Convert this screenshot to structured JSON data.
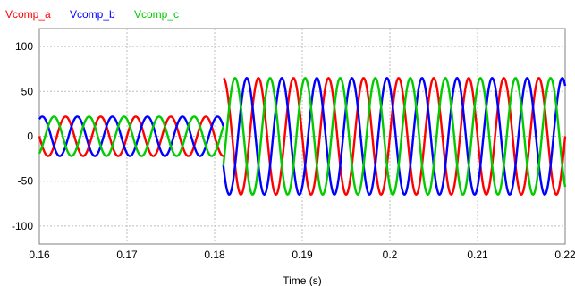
{
  "chart_data": {
    "type": "line",
    "title": "",
    "xlabel": "Time (s)",
    "ylabel": "",
    "xlim": [
      0.16,
      0.22
    ],
    "ylim": [
      -120,
      120
    ],
    "x_ticks": [
      0.16,
      0.17,
      0.18,
      0.19,
      0.2,
      0.21,
      0.22
    ],
    "x_tick_labels": [
      "0.16",
      "0.17",
      "0.18",
      "0.19",
      "0.2",
      "0.21",
      "0.22"
    ],
    "y_ticks": [
      -100,
      -50,
      0,
      50,
      100
    ],
    "y_tick_labels": [
      "-100",
      "-50",
      "0",
      "50",
      "100"
    ],
    "grid": true,
    "legend_position": "top-left",
    "series": [
      {
        "name": "Vcomp_a",
        "color": "#ff0000",
        "segments": [
          {
            "x_start": 0.16,
            "x_end": 0.181,
            "frequency_hz": 250,
            "dc_offset": 0,
            "amplitude": 22,
            "phase_deg": 180
          },
          {
            "x_start": 0.181,
            "x_end": 0.22,
            "frequency_hz": 250,
            "dc_offset": 0,
            "amplitude": 65,
            "phase_deg": 0
          }
        ]
      },
      {
        "name": "Vcomp_b",
        "color": "#0000ff",
        "segments": [
          {
            "x_start": 0.16,
            "x_end": 0.181,
            "frequency_hz": 250,
            "dc_offset": 0,
            "amplitude": 22,
            "phase_deg": 60
          },
          {
            "x_start": 0.181,
            "x_end": 0.22,
            "frequency_hz": 250,
            "dc_offset": 0,
            "amplitude": 65,
            "phase_deg": 120
          }
        ]
      },
      {
        "name": "Vcomp_c",
        "color": "#00cc00",
        "segments": [
          {
            "x_start": 0.16,
            "x_end": 0.181,
            "frequency_hz": 250,
            "dc_offset": 0,
            "amplitude": 22,
            "phase_deg": -60
          },
          {
            "x_start": 0.181,
            "x_end": 0.22,
            "frequency_hz": 250,
            "dc_offset": 0,
            "amplitude": 65,
            "phase_deg": 240
          }
        ]
      }
    ]
  }
}
